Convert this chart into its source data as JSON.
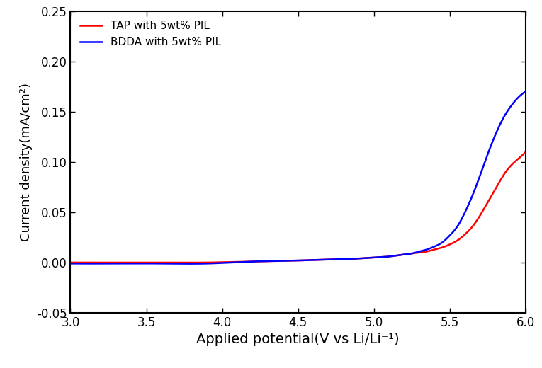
{
  "title": "",
  "xlabel": "Applied potential(V vs Li/Li⁻¹)",
  "ylabel": "Current density(mA/cm²)",
  "xlim": [
    3.0,
    6.0
  ],
  "ylim": [
    -0.05,
    0.25
  ],
  "xticks": [
    3.0,
    3.5,
    4.0,
    4.5,
    5.0,
    5.5,
    6.0
  ],
  "yticks": [
    -0.05,
    0.0,
    0.05,
    0.1,
    0.15,
    0.2,
    0.25
  ],
  "legend": [
    {
      "label": "TAP with 5wt% PIL",
      "color": "#FF0000"
    },
    {
      "label": "BDDA with 5wt% PIL",
      "color": "#0000FF"
    }
  ],
  "tap_x": [
    3.0,
    3.3,
    3.6,
    3.9,
    4.2,
    4.5,
    4.7,
    4.9,
    5.0,
    5.1,
    5.15,
    5.2,
    5.25,
    5.3,
    5.35,
    5.4,
    5.45,
    5.5,
    5.55,
    5.6,
    5.65,
    5.7,
    5.75,
    5.8,
    5.85,
    5.9,
    5.95,
    6.0
  ],
  "tap_y": [
    0.0,
    0.0,
    0.0,
    0.0,
    0.001,
    0.002,
    0.003,
    0.004,
    0.005,
    0.006,
    0.007,
    0.008,
    0.009,
    0.01,
    0.011,
    0.013,
    0.015,
    0.018,
    0.022,
    0.028,
    0.036,
    0.047,
    0.06,
    0.073,
    0.086,
    0.096,
    0.103,
    0.11
  ],
  "bdda_x": [
    3.0,
    3.3,
    3.6,
    3.9,
    4.2,
    4.5,
    4.7,
    4.9,
    5.0,
    5.1,
    5.15,
    5.2,
    5.25,
    5.3,
    5.35,
    5.4,
    5.45,
    5.5,
    5.55,
    5.6,
    5.65,
    5.7,
    5.75,
    5.8,
    5.85,
    5.9,
    5.95,
    6.0
  ],
  "bdda_y": [
    -0.001,
    -0.001,
    -0.001,
    -0.001,
    0.001,
    0.002,
    0.003,
    0.004,
    0.005,
    0.006,
    0.007,
    0.008,
    0.009,
    0.011,
    0.013,
    0.016,
    0.02,
    0.027,
    0.036,
    0.05,
    0.067,
    0.087,
    0.108,
    0.127,
    0.143,
    0.155,
    0.164,
    0.17
  ],
  "linewidth": 1.8,
  "xlabel_fontsize": 14,
  "ylabel_fontsize": 13,
  "tick_fontsize": 12,
  "legend_fontsize": 11
}
